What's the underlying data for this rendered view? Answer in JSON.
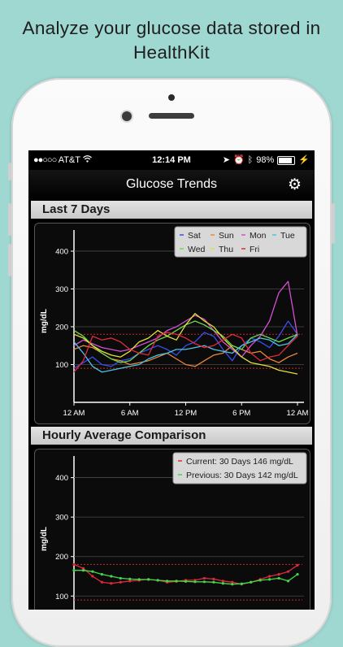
{
  "headline": [
    "Analyze your glucose data stored in",
    "HealthKit"
  ],
  "status_bar": {
    "carrier": "AT&T",
    "time": "12:14 PM",
    "battery": "98%"
  },
  "nav": {
    "title": "Glucose Trends",
    "settings_icon": "gear-icon"
  },
  "sections": {
    "last7": "Last 7 Days",
    "hourly": "Hourly Average Comparison"
  },
  "colors": {
    "Sat": "#3a4ef0",
    "Sun": "#e88a3c",
    "Mon": "#d64fd6",
    "Tue": "#4ac6e6",
    "Wed": "#6fd84f",
    "Thu": "#e3e03a",
    "Fri": "#e02a3c",
    "Current": "#e02a3c",
    "Previous": "#43d84a",
    "range_line": "#c62828"
  },
  "chart_data": [
    {
      "type": "line",
      "title": "Last 7 Days",
      "ylabel": "mg/dL",
      "ylim": [
        0,
        430
      ],
      "yticks": [
        100,
        200,
        300,
        400
      ],
      "xlim": [
        0,
        24
      ],
      "xticks": [
        {
          "value": 0,
          "label": "12 AM"
        },
        {
          "value": 6,
          "label": "6 AM"
        },
        {
          "value": 12,
          "label": "12 PM"
        },
        {
          "value": 18,
          "label": "6 PM"
        },
        {
          "value": 24,
          "label": "12 AM"
        }
      ],
      "reference_lines": [
        180,
        90
      ],
      "legend_position": "top-right",
      "legend": [
        "Sat",
        "Sun",
        "Mon",
        "Tue",
        "Wed",
        "Thu",
        "Fri"
      ],
      "x": [
        0,
        1,
        2,
        3,
        4,
        5,
        6,
        7,
        8,
        9,
        10,
        11,
        12,
        13,
        14,
        15,
        16,
        17,
        18,
        19,
        20,
        21,
        22,
        23,
        24
      ],
      "series": [
        {
          "name": "Sat",
          "values": [
            90,
            105,
            120,
            100,
            95,
            110,
            115,
            130,
            140,
            150,
            140,
            125,
            150,
            160,
            185,
            175,
            140,
            110,
            150,
            170,
            160,
            145,
            175,
            215,
            180
          ]
        },
        {
          "name": "Sun",
          "values": [
            140,
            150,
            145,
            130,
            115,
            110,
            100,
            105,
            110,
            120,
            130,
            115,
            100,
            95,
            110,
            125,
            130,
            150,
            140,
            130,
            135,
            115,
            105,
            120,
            130
          ]
        },
        {
          "name": "Mon",
          "values": [
            150,
            165,
            155,
            145,
            140,
            135,
            140,
            150,
            160,
            170,
            190,
            200,
            215,
            230,
            220,
            190,
            160,
            140,
            120,
            150,
            175,
            215,
            290,
            320,
            175
          ]
        },
        {
          "name": "Tue",
          "values": [
            160,
            130,
            95,
            80,
            85,
            90,
            95,
            100,
            115,
            125,
            130,
            140,
            140,
            145,
            150,
            140,
            135,
            130,
            150,
            160,
            170,
            165,
            150,
            155,
            180
          ]
        },
        {
          "name": "Wed",
          "values": [
            190,
            175,
            150,
            130,
            115,
            105,
            110,
            130,
            150,
            165,
            175,
            190,
            205,
            215,
            205,
            190,
            175,
            150,
            140,
            170,
            180,
            170,
            160,
            170,
            180
          ]
        },
        {
          "name": "Thu",
          "values": [
            180,
            170,
            150,
            135,
            125,
            120,
            135,
            160,
            170,
            190,
            175,
            165,
            205,
            235,
            215,
            200,
            170,
            145,
            120,
            105,
            100,
            95,
            85,
            80,
            75
          ]
        },
        {
          "name": "Fri",
          "values": [
            80,
            110,
            175,
            165,
            170,
            160,
            140,
            130,
            125,
            175,
            185,
            180,
            170,
            155,
            145,
            150,
            165,
            180,
            170,
            130,
            110,
            120,
            125,
            150,
            175
          ]
        }
      ]
    },
    {
      "type": "line",
      "title": "Hourly Average Comparison",
      "ylabel": "mg/dL",
      "ylim": [
        80,
        430
      ],
      "yticks": [
        100,
        200,
        300,
        400
      ],
      "reference_lines": [
        180,
        90
      ],
      "legend_position": "top-right",
      "legend": [
        "Current: 30 Days 146 mg/dL",
        "Previous: 30 Days 142 mg/dL"
      ],
      "x": [
        0,
        1,
        2,
        3,
        4,
        5,
        6,
        7,
        8,
        9,
        10,
        11,
        12,
        13,
        14,
        15,
        16,
        17,
        18,
        19,
        20,
        21,
        22,
        23,
        24
      ],
      "series": [
        {
          "name": "Current",
          "values": [
            180,
            170,
            150,
            135,
            132,
            135,
            138,
            140,
            142,
            140,
            135,
            137,
            140,
            140,
            145,
            143,
            138,
            135,
            130,
            135,
            142,
            150,
            155,
            162,
            178
          ]
        },
        {
          "name": "Previous",
          "values": [
            165,
            165,
            162,
            155,
            150,
            145,
            143,
            142,
            142,
            140,
            138,
            138,
            137,
            136,
            136,
            135,
            132,
            130,
            131,
            135,
            140,
            142,
            145,
            138,
            155
          ]
        }
      ]
    }
  ]
}
